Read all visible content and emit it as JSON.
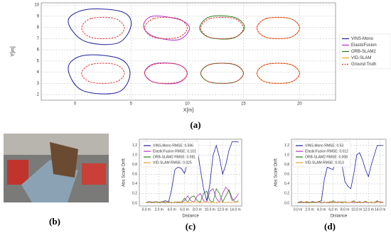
{
  "captions": [
    "(a)",
    "(b)",
    "(c)",
    "(d)"
  ],
  "chart_data": [
    {
      "type": "line",
      "smooth": true,
      "xlabel": "X[m]",
      "ylabel": "Y[m]",
      "legend": "right",
      "grid": true,
      "xlim": [
        -3.0,
        23.2
      ],
      "ylim": [
        1.5,
        10.2
      ],
      "xticks": [
        0,
        5,
        10,
        15,
        20
      ],
      "yticks": [
        2,
        3,
        4,
        5,
        6,
        7,
        8,
        9,
        10
      ],
      "series": [
        {
          "name": "VINS-Mono",
          "color": "#1f1f9e",
          "dash": false,
          "x": [
            1.0,
            4.2,
            5.0,
            3.8,
            0.8,
            -0.6,
            1.0,
            null,
            0.8,
            4.0,
            4.9,
            3.8,
            0.6,
            -0.6,
            0.8
          ],
          "values": [
            9.6,
            9.4,
            8.2,
            6.6,
            6.8,
            8.6,
            9.6,
            null,
            5.5,
            5.2,
            3.8,
            2.2,
            2.4,
            4.4,
            5.5
          ]
        },
        {
          "name": "ElasticFusion",
          "color": "#b030c8",
          "dash": false,
          "x": [
            6.9,
            9.3,
            10.2,
            9.2,
            7.0,
            6.1,
            6.9,
            null,
            7.05,
            9.15,
            10.0,
            9.15,
            7.05,
            6.2,
            7.05
          ],
          "values": [
            9.0,
            8.7,
            7.9,
            6.9,
            7.2,
            8.1,
            9.0,
            null,
            4.75,
            4.7,
            3.9,
            3.05,
            3.1,
            3.95,
            4.75
          ]
        },
        {
          "name": "ORB-SLAM2",
          "color": "#2e7d1e",
          "dash": false,
          "x": [
            12.0,
            14.2,
            15.1,
            14.1,
            12.0,
            11.1,
            12.0,
            null,
            12.05,
            14.15,
            15.0,
            14.15,
            12.05,
            11.2,
            12.05
          ],
          "values": [
            8.95,
            8.9,
            8.0,
            7.05,
            7.1,
            7.95,
            8.95,
            null,
            4.7,
            4.7,
            3.9,
            3.1,
            3.1,
            3.9,
            4.7
          ]
        },
        {
          "name": "VID-SLAM",
          "color": "#f0a020",
          "dash": false,
          "x": [
            17.05,
            19.15,
            20.0,
            19.15,
            17.05,
            16.2,
            17.05,
            null,
            17.05,
            19.15,
            20.0,
            19.15,
            17.05,
            16.2,
            17.05
          ],
          "values": [
            8.8,
            8.8,
            7.95,
            7.1,
            7.1,
            7.95,
            8.8,
            null,
            4.7,
            4.7,
            3.9,
            3.1,
            3.1,
            3.9,
            4.7
          ]
        },
        {
          "name": "Ground Truth",
          "color": "#e03030",
          "dash": true,
          "x": [
            1.45,
            3.55,
            4.4,
            3.55,
            1.45,
            0.6,
            1.45,
            null,
            1.45,
            3.55,
            4.4,
            3.55,
            1.45,
            0.6,
            1.45,
            null,
            7.05,
            9.15,
            10.0,
            9.15,
            7.05,
            6.2,
            7.05,
            null,
            7.05,
            9.15,
            10.0,
            9.15,
            7.05,
            6.2,
            7.05,
            null,
            12.05,
            14.15,
            15.0,
            14.15,
            12.05,
            11.2,
            12.05,
            null,
            12.05,
            14.15,
            15.0,
            14.15,
            12.05,
            11.2,
            12.05,
            null,
            17.05,
            19.15,
            20.0,
            19.15,
            17.05,
            16.2,
            17.05,
            null,
            17.05,
            19.15,
            20.0,
            19.15,
            17.05,
            16.2,
            17.05
          ],
          "values": [
            8.8,
            8.8,
            7.95,
            7.1,
            7.1,
            7.95,
            8.8,
            null,
            4.7,
            4.7,
            3.9,
            3.1,
            3.1,
            3.9,
            4.7,
            null,
            8.8,
            8.8,
            7.95,
            7.1,
            7.1,
            7.95,
            8.8,
            null,
            4.7,
            4.7,
            3.9,
            3.1,
            3.1,
            3.9,
            4.7,
            null,
            8.8,
            8.8,
            7.95,
            7.1,
            7.1,
            7.95,
            8.8,
            null,
            4.7,
            4.7,
            3.9,
            3.1,
            3.1,
            3.9,
            4.7,
            null,
            8.8,
            8.8,
            7.95,
            7.1,
            7.1,
            7.95,
            8.8,
            null,
            4.7,
            4.7,
            3.9,
            3.1,
            3.1,
            3.9,
            4.7
          ]
        }
      ]
    },
    {
      "type": "line",
      "smooth": false,
      "xlabel": "Distance",
      "ylabel": "Abs Scale Drift",
      "legend": "upper left",
      "grid": true,
      "xlim": [
        -1.1,
        15.0
      ],
      "ylim": [
        -0.06,
        1.33
      ],
      "xticks": [
        {
          "value": 0,
          "label": "0.0 m"
        },
        {
          "value": 2,
          "label": "2.0 m"
        },
        {
          "value": 4,
          "label": "4.0 m"
        },
        {
          "value": 6,
          "label": "6.0 m"
        },
        {
          "value": 8,
          "label": "8.0 m"
        },
        {
          "value": 10,
          "label": "10.0 m"
        },
        {
          "value": 12,
          "label": "12.0 m"
        },
        {
          "value": 14,
          "label": "14.0 m"
        }
      ],
      "yticks": [
        {
          "value": 0,
          "label": "0.0"
        },
        {
          "value": 0.2,
          "label": "0.2"
        },
        {
          "value": 0.4,
          "label": "0.4"
        },
        {
          "value": 0.6,
          "label": "0.6"
        },
        {
          "value": 0.8,
          "label": "0.8"
        },
        {
          "value": 1,
          "label": "1.0"
        },
        {
          "value": 1.2,
          "label": "1.2"
        }
      ],
      "x": [
        0,
        0.5,
        1,
        1.5,
        2,
        2.5,
        3,
        3.5,
        4,
        4.5,
        5,
        5.5,
        6,
        6.5,
        7,
        7.5,
        8,
        8.5,
        9,
        9.5,
        10,
        10.5,
        11,
        11.5,
        12,
        12.5,
        13,
        13.5,
        14,
        14.5
      ],
      "series": [
        {
          "name": "VINS-Mono RMSE: 0.596",
          "color": "#1f1f9e",
          "values": [
            0.02,
            0.03,
            0.02,
            0.03,
            0.02,
            0.03,
            0.05,
            0.02,
            0.3,
            0.7,
            0.75,
            0.72,
            0.62,
            0.85,
            1.1,
            1.2,
            1.15,
            0.7,
            0.3,
            0.05,
            0.4,
            1.0,
            1.2,
            0.95,
            0.6,
            0.8,
            1.1,
            1.28,
            1.28,
            1.27
          ]
        },
        {
          "name": "ElasticFusion RMSE: 0.101",
          "color": "#b030c8",
          "values": [
            0.01,
            0.02,
            0.01,
            0.02,
            0.01,
            0.02,
            0.01,
            0.02,
            0.01,
            0.02,
            0.03,
            0.01,
            0.05,
            0.15,
            0.05,
            0.02,
            0.15,
            0.2,
            0.05,
            0.02,
            0.25,
            0.3,
            0.1,
            0.02,
            0.2,
            0.33,
            0.25,
            0.05,
            0.1,
            0.2
          ]
        },
        {
          "name": "ORB-SLAM2 RMSE: 0.081",
          "color": "#2e7d1e",
          "values": [
            0.01,
            0.02,
            0.01,
            0.03,
            0.01,
            0.02,
            0.01,
            0.03,
            0.01,
            0.02,
            0.01,
            0.02,
            0.1,
            0.02,
            0.12,
            0.15,
            0.05,
            0.02,
            0.2,
            0.25,
            0.05,
            0.02,
            0.3,
            0.2,
            0.02,
            0.15,
            0.28,
            0.1,
            0.02,
            0.05
          ]
        },
        {
          "name": "VID-SLAM RMSE: 0.025",
          "color": "#f0a020",
          "values": [
            0.01,
            0.02,
            0.01,
            0.02,
            0.01,
            0.03,
            0.02,
            0.01,
            0.02,
            0.01,
            0.03,
            0.02,
            0.01,
            0.02,
            0.01,
            0.03,
            0.02,
            0.01,
            0.02,
            0.03,
            0.01,
            0.02,
            0.01,
            0.03,
            0.02,
            0.01,
            0.02,
            0.01,
            0.03,
            0.02
          ]
        }
      ]
    },
    {
      "type": "line",
      "smooth": false,
      "xlabel": "Distance",
      "ylabel": "Abs Scale Drift",
      "legend": "upper left",
      "grid": true,
      "xlim": [
        -1.1,
        15.0
      ],
      "ylim": [
        -0.06,
        1.33
      ],
      "xticks": [
        {
          "value": 0,
          "label": "0.0 m"
        },
        {
          "value": 2,
          "label": "2.0 m"
        },
        {
          "value": 4,
          "label": "4.0 m"
        },
        {
          "value": 6,
          "label": "6.0 m"
        },
        {
          "value": 8,
          "label": "8.0 m"
        },
        {
          "value": 10,
          "label": "10.0 m"
        },
        {
          "value": 12,
          "label": "12.0 m"
        },
        {
          "value": 14,
          "label": "14.0 m"
        }
      ],
      "yticks": [
        {
          "value": 0,
          "label": "0.0"
        },
        {
          "value": 0.2,
          "label": "0.2"
        },
        {
          "value": 0.4,
          "label": "0.4"
        },
        {
          "value": 0.6,
          "label": "0.6"
        },
        {
          "value": 0.8,
          "label": "0.8"
        },
        {
          "value": 1,
          "label": "1.0"
        },
        {
          "value": 1.2,
          "label": "1.2"
        }
      ],
      "x": [
        0,
        0.5,
        1,
        1.5,
        2,
        2.5,
        3,
        3.5,
        4,
        4.5,
        5,
        5.5,
        6,
        6.5,
        7,
        7.5,
        8,
        8.5,
        9,
        9.5,
        10,
        10.5,
        11,
        11.5,
        12,
        12.5,
        13,
        13.5,
        14,
        14.5
      ],
      "series": [
        {
          "name": "VINS-Mono RMSE: 0.53",
          "color": "#1f1f9e",
          "values": [
            0.02,
            0.03,
            0.02,
            0.03,
            0.02,
            0.03,
            0.02,
            0.03,
            0.05,
            0.5,
            0.75,
            0.72,
            0.7,
            0.95,
            1.0,
            0.8,
            0.45,
            0.35,
            0.3,
            0.6,
            1.0,
            1.05,
            0.9,
            0.7,
            0.55,
            0.8,
            1.0,
            1.2,
            1.2,
            1.2
          ]
        },
        {
          "name": "ElasticFusion RMSE: 0.012",
          "color": "#b030c8",
          "values": [
            0.01,
            0.02,
            0.01,
            0.02,
            0.01,
            0.02,
            0.01,
            0.02,
            0.01,
            0.02,
            0.01,
            0.02,
            0.01,
            0.02,
            0.03,
            0.01,
            0.02,
            0.01,
            0.02,
            0.01,
            0.02,
            0.03,
            0.01,
            0.02,
            0.01,
            0.02,
            0.01,
            0.02,
            0.03,
            0.02
          ]
        },
        {
          "name": "ORB-SLAM2 RMSE: 0.008",
          "color": "#2e7d1e",
          "values": [
            0.01,
            0.01,
            0.02,
            0.01,
            0.01,
            0.02,
            0.01,
            0.03,
            0.01,
            0.01,
            0.02,
            0.01,
            0.05,
            0.01,
            0.02,
            0.01,
            0.03,
            0.01,
            0.02,
            0.05,
            0.01,
            0.02,
            0.01,
            0.04,
            0.01,
            0.02,
            0.01,
            0.05,
            0.01,
            0.02
          ]
        },
        {
          "name": "VID-SLAM RMSE: 0.013",
          "color": "#f0a020",
          "values": [
            0.02,
            0.01,
            0.02,
            0.03,
            0.02,
            0.01,
            0.02,
            0.03,
            0.02,
            0.01,
            0.02,
            0.03,
            0.02,
            0.01,
            0.02,
            0.03,
            0.02,
            0.01,
            0.02,
            0.03,
            0.02,
            0.01,
            0.02,
            0.03,
            0.02,
            0.01,
            0.02,
            0.03,
            0.02,
            0.01
          ]
        }
      ]
    }
  ]
}
